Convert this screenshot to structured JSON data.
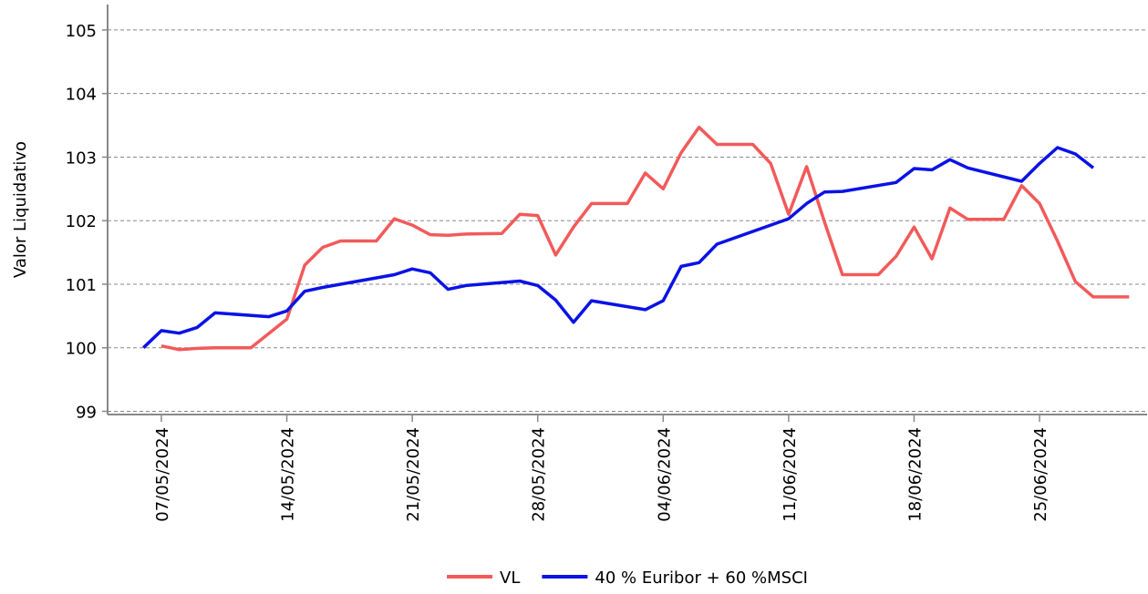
{
  "chart_data": {
    "type": "line",
    "y_label": "Valor Liquidativo",
    "ylim": [
      98.95,
      105.4
    ],
    "yticks": [
      99,
      100,
      101,
      102,
      103,
      104,
      105
    ],
    "grid": true,
    "xlim": [
      "04/05/2024",
      "01/07/2024"
    ],
    "xticks": [
      "07/05/2024",
      "14/05/2024",
      "21/05/2024",
      "28/05/2024",
      "04/06/2024",
      "11/06/2024",
      "18/06/2024",
      "25/06/2024"
    ],
    "legend": "bottom",
    "series": [
      {
        "name": "VL",
        "color": "#f25a5a",
        "x": [
          "07/05/2024",
          "08/05/2024",
          "09/05/2024",
          "10/05/2024",
          "12/05/2024",
          "14/05/2024",
          "15/05/2024",
          "16/05/2024",
          "17/05/2024",
          "19/05/2024",
          "20/05/2024",
          "21/05/2024",
          "22/05/2024",
          "23/05/2024",
          "24/05/2024",
          "26/05/2024",
          "27/05/2024",
          "28/05/2024",
          "29/05/2024",
          "30/05/2024",
          "31/05/2024",
          "02/06/2024",
          "03/06/2024",
          "04/06/2024",
          "05/06/2024",
          "06/06/2024",
          "07/06/2024",
          "09/06/2024",
          "10/06/2024",
          "11/06/2024",
          "12/06/2024",
          "13/06/2024",
          "14/06/2024",
          "16/06/2024",
          "17/06/2024",
          "18/06/2024",
          "19/06/2024",
          "20/06/2024",
          "21/06/2024",
          "23/06/2024",
          "24/06/2024",
          "25/06/2024",
          "26/06/2024",
          "27/06/2024",
          "28/06/2024",
          "30/06/2024"
        ],
        "values": [
          100.03,
          99.97,
          99.99,
          100.0,
          100.0,
          100.45,
          101.3,
          101.58,
          101.68,
          101.68,
          102.03,
          101.93,
          101.78,
          101.77,
          101.79,
          101.8,
          102.1,
          102.08,
          101.46,
          101.9,
          102.27,
          102.27,
          102.75,
          102.5,
          103.07,
          103.47,
          103.2,
          103.2,
          102.9,
          102.1,
          102.85,
          101.98,
          101.15,
          101.15,
          101.44,
          101.9,
          101.4,
          102.2,
          102.02,
          102.02,
          102.55,
          102.27,
          101.68,
          101.04,
          100.8,
          100.8
        ]
      },
      {
        "name": "40 % Euribor + 60 %MSCI",
        "color": "#0a12e6",
        "x": [
          "06/05/2024",
          "07/05/2024",
          "08/05/2024",
          "09/05/2024",
          "10/05/2024",
          "13/05/2024",
          "14/05/2024",
          "15/05/2024",
          "16/05/2024",
          "17/05/2024",
          "20/05/2024",
          "21/05/2024",
          "22/05/2024",
          "23/05/2024",
          "24/05/2024",
          "27/05/2024",
          "28/05/2024",
          "29/05/2024",
          "30/05/2024",
          "31/05/2024",
          "03/06/2024",
          "04/06/2024",
          "05/06/2024",
          "06/06/2024",
          "07/06/2024",
          "10/06/2024",
          "11/06/2024",
          "12/06/2024",
          "13/06/2024",
          "14/06/2024",
          "17/06/2024",
          "18/06/2024",
          "19/06/2024",
          "20/06/2024",
          "21/06/2024",
          "24/06/2024",
          "25/06/2024",
          "26/06/2024",
          "27/06/2024",
          "28/06/2024"
        ],
        "values": [
          100.0,
          100.27,
          100.23,
          100.32,
          100.55,
          100.49,
          100.58,
          100.89,
          100.95,
          101.0,
          101.15,
          101.24,
          101.18,
          100.92,
          100.98,
          101.05,
          100.98,
          100.75,
          100.4,
          100.74,
          100.6,
          100.74,
          101.28,
          101.34,
          101.63,
          101.93,
          102.03,
          102.27,
          102.45,
          102.46,
          102.6,
          102.82,
          102.8,
          102.96,
          102.83,
          102.62,
          102.9,
          103.15,
          103.05,
          102.83
        ]
      }
    ]
  }
}
